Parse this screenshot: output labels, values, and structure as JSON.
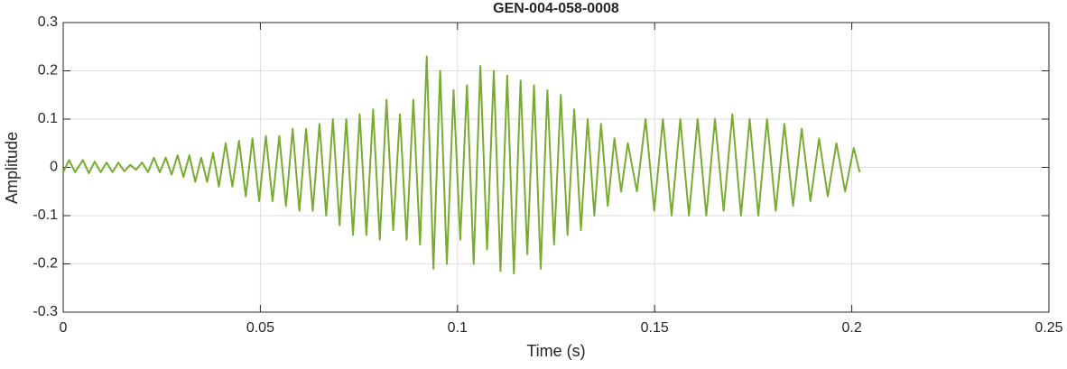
{
  "chart_data": {
    "type": "line",
    "title": "GEN-004-058-0008",
    "xlabel": "Time (s)",
    "ylabel": "Amplitude",
    "color": "#77ac30",
    "grid": true,
    "xlim": [
      0,
      0.25
    ],
    "xticks": [
      0,
      0.05,
      0.1,
      0.15,
      0.2,
      0.25
    ],
    "ylim": [
      -0.3,
      0.3
    ],
    "yticks": [
      -0.3,
      -0.2,
      -0.1,
      0,
      0.1,
      0.2,
      0.3
    ],
    "x": [
      0,
      0.0015,
      0.003,
      0.005,
      0.0065,
      0.008,
      0.0095,
      0.011,
      0.0125,
      0.014,
      0.0155,
      0.017,
      0.0185,
      0.02,
      0.0215,
      0.023,
      0.0245,
      0.026,
      0.0275,
      0.029,
      0.0305,
      0.032,
      0.0335,
      0.035,
      0.0365,
      0.038,
      0.0395,
      0.0412,
      0.0429,
      0.0446,
      0.0463,
      0.048,
      0.0497,
      0.0514,
      0.0531,
      0.0548,
      0.0565,
      0.0582,
      0.0599,
      0.0616,
      0.0633,
      0.065,
      0.0667,
      0.0684,
      0.0701,
      0.0718,
      0.0735,
      0.0752,
      0.0769,
      0.0786,
      0.0803,
      0.082,
      0.0837,
      0.0854,
      0.0871,
      0.0888,
      0.0905,
      0.0922,
      0.0939,
      0.0956,
      0.0973,
      0.099,
      0.1007,
      0.1024,
      0.1041,
      0.1058,
      0.1075,
      0.1092,
      0.1109,
      0.1126,
      0.1143,
      0.116,
      0.1177,
      0.1194,
      0.1211,
      0.1228,
      0.1245,
      0.1262,
      0.1279,
      0.1296,
      0.1313,
      0.133,
      0.1347,
      0.1364,
      0.1381,
      0.1398,
      0.1415,
      0.1432,
      0.1455,
      0.1477,
      0.1499,
      0.1521,
      0.1543,
      0.1565,
      0.1587,
      0.1609,
      0.1631,
      0.1653,
      0.1675,
      0.1697,
      0.1719,
      0.1741,
      0.1763,
      0.1785,
      0.1807,
      0.1829,
      0.1851,
      0.1873,
      0.1895,
      0.1917,
      0.1939,
      0.1961,
      0.1983,
      0.2005,
      0.202
    ],
    "values": [
      -0.01,
      0.015,
      -0.01,
      0.015,
      -0.012,
      0.012,
      -0.01,
      0.01,
      -0.01,
      0.01,
      -0.008,
      0.005,
      -0.005,
      0.01,
      -0.01,
      0.02,
      -0.01,
      0.02,
      -0.015,
      0.025,
      -0.02,
      0.025,
      -0.03,
      0.02,
      -0.03,
      0.03,
      -0.04,
      0.05,
      -0.04,
      0.055,
      -0.06,
      0.06,
      -0.07,
      0.065,
      -0.07,
      0.065,
      -0.08,
      0.08,
      -0.09,
      0.08,
      -0.09,
      0.09,
      -0.1,
      0.1,
      -0.12,
      0.1,
      -0.14,
      0.11,
      -0.14,
      0.12,
      -0.15,
      0.14,
      -0.13,
      0.11,
      -0.15,
      0.14,
      -0.16,
      0.23,
      -0.21,
      0.2,
      -0.2,
      0.16,
      -0.15,
      0.17,
      -0.2,
      0.21,
      -0.17,
      0.2,
      -0.215,
      0.19,
      -0.22,
      0.18,
      -0.18,
      0.17,
      -0.21,
      0.16,
      -0.16,
      0.15,
      -0.14,
      0.12,
      -0.13,
      0.1,
      -0.1,
      0.09,
      -0.08,
      0.06,
      -0.05,
      0.05,
      -0.05,
      0.1,
      -0.09,
      0.1,
      -0.1,
      0.1,
      -0.1,
      0.1,
      -0.1,
      0.1,
      -0.09,
      0.11,
      -0.1,
      0.1,
      -0.1,
      0.1,
      -0.09,
      0.09,
      -0.08,
      0.08,
      -0.07,
      0.06,
      -0.06,
      0.05,
      -0.05,
      0.04,
      -0.01
    ]
  }
}
